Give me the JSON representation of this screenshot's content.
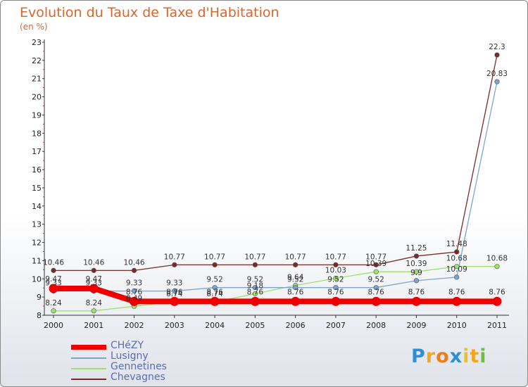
{
  "chart_data": {
    "type": "line",
    "title": "Evolution du Taux de Taxe d'Habitation",
    "subtitle": "(en %)",
    "xlabel": "",
    "ylabel": "(en %)",
    "ylim": [
      8,
      23
    ],
    "yticks": [
      "8",
      "9",
      "10",
      "11",
      "12",
      "13",
      "14",
      "15",
      "16",
      "17",
      "18",
      "19",
      "20",
      "21",
      "22",
      "23"
    ],
    "x": [
      "2000",
      "2001",
      "2002",
      "2003",
      "2004",
      "2005",
      "2006",
      "2007",
      "2008",
      "2009",
      "2010",
      "2011"
    ],
    "series": [
      {
        "name": "CHéZY",
        "color": "#ee0000",
        "values": [
          9.47,
          9.47,
          8.76,
          8.76,
          8.76,
          8.76,
          8.76,
          8.76,
          8.76,
          8.76,
          8.76,
          8.76
        ],
        "labels": [
          "9.47",
          "9.47",
          "8.76",
          "8.76",
          "8.76",
          "8.76",
          "8.76",
          "8.76",
          "8.76",
          "8.76",
          "8.76",
          "8.76"
        ]
      },
      {
        "name": "Lusigny",
        "color": "#7da4cf",
        "values": [
          9.33,
          9.33,
          9.33,
          9.33,
          9.52,
          9.52,
          9.52,
          9.52,
          9.52,
          9.9,
          10.09,
          20.83
        ],
        "labels": [
          "9.33",
          "9.33",
          "9.33",
          "9.33",
          "9.52",
          "9.52",
          "9.52",
          "9.52",
          "9.52",
          "9.9",
          "10.09",
          "20.83"
        ]
      },
      {
        "name": "Gennetines",
        "color": "#9ee06a",
        "values": [
          8.24,
          8.24,
          8.49,
          8.74,
          8.74,
          9.18,
          9.64,
          10.03,
          10.39,
          10.39,
          10.68,
          10.68
        ],
        "labels": [
          "8.24",
          "8.24",
          "8.49",
          "8.74",
          "8.74",
          "9.18",
          "9.64",
          "10.03",
          "10.39",
          "10.39",
          "10.68",
          "10.68"
        ]
      },
      {
        "name": "Chevagnes",
        "color": "#7a2a2a",
        "values": [
          10.46,
          10.46,
          10.46,
          10.77,
          10.77,
          10.77,
          10.77,
          10.77,
          10.77,
          11.25,
          11.48,
          22.3
        ],
        "labels": [
          "10.46",
          "10.46",
          "10.46",
          "10.77",
          "10.77",
          "10.77",
          "10.77",
          "10.77",
          "10.77",
          "11.25",
          "11.48",
          "22.3"
        ]
      }
    ],
    "legend": "bottom-left",
    "grid": false
  },
  "logo": {
    "text": "Proxiti"
  }
}
